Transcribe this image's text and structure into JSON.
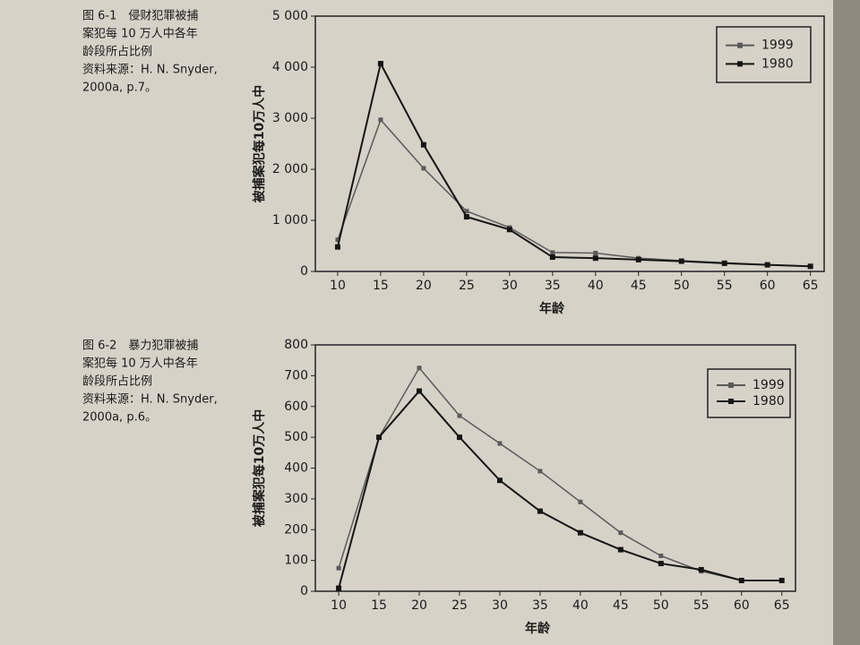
{
  "chart_data": [
    {
      "type": "line",
      "caption": [
        "图 6-1　侵财犯罪被捕",
        "案犯每 10 万人中各年",
        "龄段所占比例",
        "资料来源：H. N. Snyder,",
        "2000a, p.7。"
      ],
      "x_label": "年龄",
      "y_label": "被捕案犯每10万人中",
      "x": [
        10,
        15,
        20,
        25,
        30,
        35,
        40,
        45,
        50,
        55,
        60,
        65
      ],
      "series": [
        {
          "name": "1999",
          "color": "#5a5a5a",
          "values": [
            620,
            2970,
            2020,
            1180,
            860,
            370,
            360,
            260,
            210,
            170,
            130,
            100
          ]
        },
        {
          "name": "1980",
          "color": "#151515",
          "values": [
            480,
            4070,
            2480,
            1070,
            820,
            280,
            260,
            230,
            200,
            160,
            130,
            100
          ]
        }
      ],
      "xlim": [
        7.4,
        66.6
      ],
      "xticks": [
        10,
        15,
        20,
        25,
        30,
        35,
        40,
        45,
        50,
        55,
        60,
        65
      ],
      "ylim": [
        0,
        5000
      ],
      "yticks": [
        0,
        {
          "value": 1000,
          "label": "1 000"
        },
        {
          "value": 2000,
          "label": "2 000"
        },
        {
          "value": 3000,
          "label": "3 000"
        },
        {
          "value": 4000,
          "label": "4 000"
        },
        {
          "value": 5000,
          "label": "5 000"
        }
      ],
      "legend": "upper right"
    },
    {
      "type": "line",
      "caption": [
        "图 6-2　暴力犯罪被捕",
        "案犯每 10 万人中各年",
        "龄段所占比例",
        "资料来源：H. N. Snyder,",
        "2000a, p.6。"
      ],
      "x_label": "年龄",
      "y_label": "被捕案犯每10万人中",
      "x": [
        10,
        15,
        20,
        25,
        30,
        35,
        40,
        45,
        50,
        55,
        60,
        65
      ],
      "series": [
        {
          "name": "1999",
          "color": "#5a5a5a",
          "values": [
            75,
            500,
            725,
            570,
            480,
            390,
            290,
            190,
            115,
            65,
            35,
            35
          ]
        },
        {
          "name": "1980",
          "color": "#151515",
          "values": [
            10,
            500,
            650,
            500,
            360,
            260,
            190,
            135,
            90,
            70,
            35,
            35
          ]
        }
      ],
      "xlim": [
        7.1,
        66.7
      ],
      "xticks": [
        10,
        15,
        20,
        25,
        30,
        35,
        40,
        45,
        50,
        55,
        60,
        65
      ],
      "ylim": [
        0,
        800
      ],
      "yticks": [
        0,
        100,
        200,
        300,
        400,
        500,
        600,
        700,
        800
      ],
      "legend": "upper right"
    }
  ]
}
